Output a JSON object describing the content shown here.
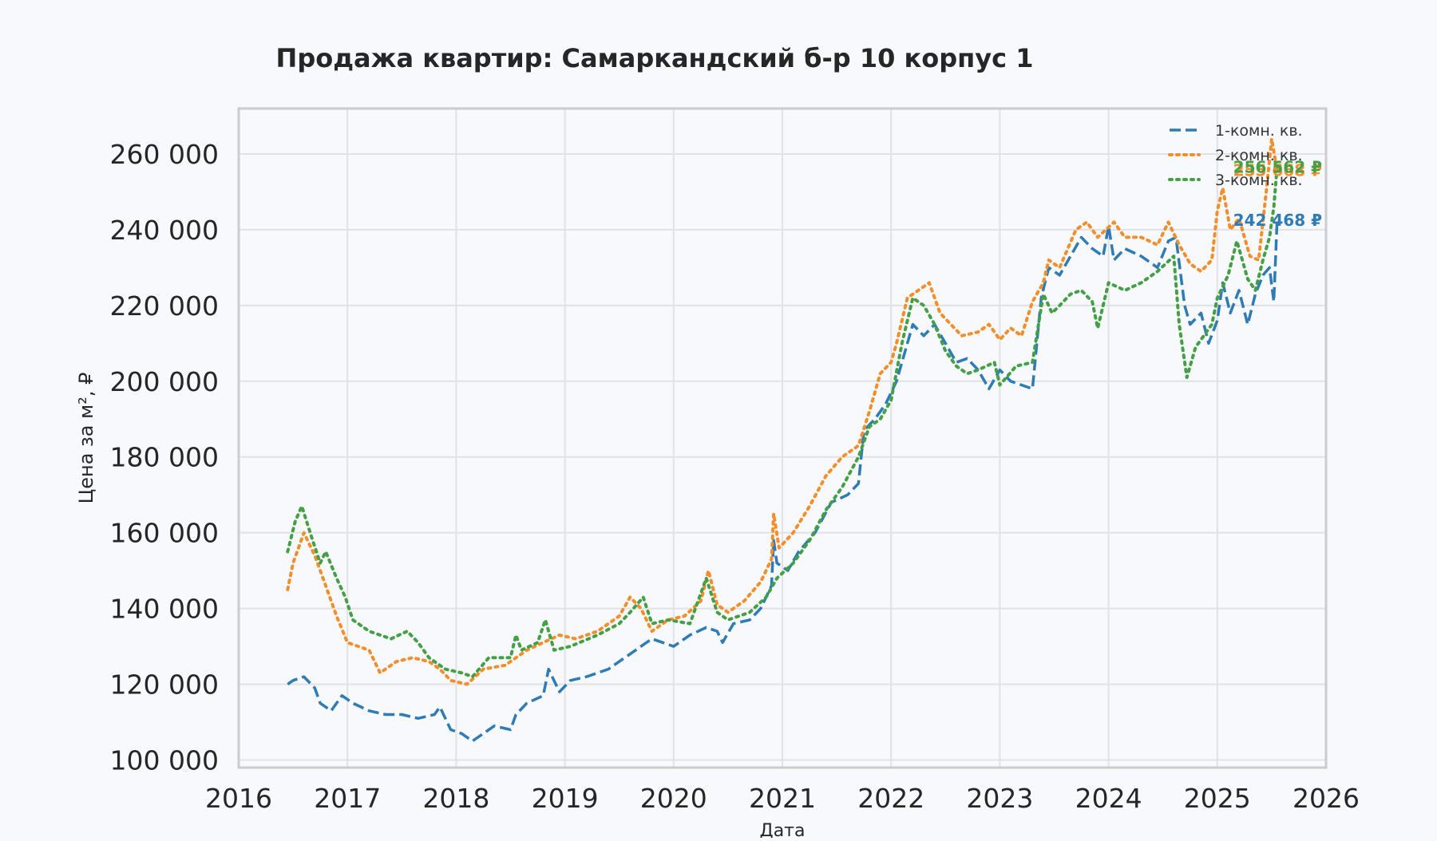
{
  "chart_data": {
    "type": "line",
    "title": "Продажа квартир: Самаркандский б-р 10 корпус 1",
    "xlabel": "Дата",
    "ylabel": "Цена за м², ₽",
    "xlim": [
      2016,
      2026
    ],
    "ylim": [
      98000,
      272000
    ],
    "x_ticks": [
      "2016",
      "2017",
      "2018",
      "2019",
      "2020",
      "2021",
      "2022",
      "2023",
      "2024",
      "2025",
      "2026"
    ],
    "y_ticks": [
      "100 000",
      "120 000",
      "140 000",
      "160 000",
      "180 000",
      "200 000",
      "220 000",
      "240 000",
      "260 000"
    ],
    "grid": true,
    "legend_position": "top-right",
    "series": [
      {
        "name": "1-комн. кв.",
        "color": "#2f7bb6",
        "style": "dashed",
        "end_label": "242 468 ₽",
        "points": [
          [
            2016.45,
            120000
          ],
          [
            2016.5,
            121000
          ],
          [
            2016.6,
            122000
          ],
          [
            2016.7,
            119000
          ],
          [
            2016.75,
            115000
          ],
          [
            2016.85,
            113000
          ],
          [
            2016.95,
            117000
          ],
          [
            2017.05,
            115000
          ],
          [
            2017.2,
            113000
          ],
          [
            2017.35,
            112000
          ],
          [
            2017.5,
            112000
          ],
          [
            2017.65,
            111000
          ],
          [
            2017.8,
            112000
          ],
          [
            2017.85,
            114000
          ],
          [
            2017.95,
            108000
          ],
          [
            2018.05,
            107000
          ],
          [
            2018.15,
            105000
          ],
          [
            2018.25,
            107000
          ],
          [
            2018.35,
            109000
          ],
          [
            2018.5,
            108000
          ],
          [
            2018.55,
            112000
          ],
          [
            2018.65,
            115000
          ],
          [
            2018.8,
            117000
          ],
          [
            2018.85,
            124000
          ],
          [
            2018.95,
            118000
          ],
          [
            2019.05,
            121000
          ],
          [
            2019.2,
            122000
          ],
          [
            2019.4,
            124000
          ],
          [
            2019.55,
            127000
          ],
          [
            2019.7,
            130000
          ],
          [
            2019.8,
            132000
          ],
          [
            2019.9,
            131000
          ],
          [
            2020.0,
            130000
          ],
          [
            2020.15,
            133000
          ],
          [
            2020.3,
            135000
          ],
          [
            2020.4,
            134000
          ],
          [
            2020.45,
            131000
          ],
          [
            2020.55,
            136000
          ],
          [
            2020.7,
            137000
          ],
          [
            2020.8,
            140000
          ],
          [
            2020.9,
            146000
          ],
          [
            2020.92,
            158000
          ],
          [
            2020.95,
            152000
          ],
          [
            2021.05,
            150000
          ],
          [
            2021.15,
            155000
          ],
          [
            2021.3,
            160000
          ],
          [
            2021.45,
            168000
          ],
          [
            2021.6,
            170000
          ],
          [
            2021.7,
            173000
          ],
          [
            2021.75,
            187000
          ],
          [
            2021.85,
            190000
          ],
          [
            2021.95,
            194000
          ],
          [
            2022.05,
            200000
          ],
          [
            2022.15,
            210000
          ],
          [
            2022.2,
            215000
          ],
          [
            2022.3,
            212000
          ],
          [
            2022.4,
            215000
          ],
          [
            2022.5,
            210000
          ],
          [
            2022.6,
            205000
          ],
          [
            2022.7,
            206000
          ],
          [
            2022.8,
            203000
          ],
          [
            2022.9,
            198000
          ],
          [
            2023.0,
            203000
          ],
          [
            2023.1,
            200000
          ],
          [
            2023.2,
            199000
          ],
          [
            2023.3,
            198000
          ],
          [
            2023.38,
            222000
          ],
          [
            2023.45,
            230000
          ],
          [
            2023.55,
            228000
          ],
          [
            2023.65,
            233000
          ],
          [
            2023.75,
            238000
          ],
          [
            2023.85,
            235000
          ],
          [
            2023.95,
            233000
          ],
          [
            2024.0,
            241000
          ],
          [
            2024.05,
            232000
          ],
          [
            2024.15,
            235000
          ],
          [
            2024.3,
            233000
          ],
          [
            2024.45,
            230000
          ],
          [
            2024.55,
            237000
          ],
          [
            2024.62,
            238000
          ],
          [
            2024.7,
            220000
          ],
          [
            2024.75,
            215000
          ],
          [
            2024.85,
            218000
          ],
          [
            2024.92,
            210000
          ],
          [
            2025.0,
            216000
          ],
          [
            2025.05,
            226000
          ],
          [
            2025.12,
            218000
          ],
          [
            2025.2,
            224000
          ],
          [
            2025.28,
            215000
          ],
          [
            2025.35,
            223000
          ],
          [
            2025.42,
            228000
          ],
          [
            2025.48,
            230000
          ],
          [
            2025.52,
            221000
          ],
          [
            2025.55,
            242468
          ]
        ]
      },
      {
        "name": "2-комн. кв.",
        "color": "#f28e2b",
        "style": "dotted",
        "end_label": "255 668 ₽",
        "points": [
          [
            2016.45,
            145000
          ],
          [
            2016.5,
            152000
          ],
          [
            2016.6,
            160000
          ],
          [
            2016.7,
            154000
          ],
          [
            2016.8,
            146000
          ],
          [
            2016.9,
            138000
          ],
          [
            2017.0,
            131000
          ],
          [
            2017.1,
            130000
          ],
          [
            2017.2,
            129000
          ],
          [
            2017.3,
            123000
          ],
          [
            2017.45,
            126000
          ],
          [
            2017.6,
            127000
          ],
          [
            2017.75,
            126000
          ],
          [
            2017.85,
            124000
          ],
          [
            2017.95,
            121000
          ],
          [
            2018.1,
            120000
          ],
          [
            2018.25,
            124000
          ],
          [
            2018.45,
            125000
          ],
          [
            2018.65,
            129000
          ],
          [
            2018.8,
            131000
          ],
          [
            2018.95,
            133000
          ],
          [
            2019.1,
            132000
          ],
          [
            2019.3,
            134000
          ],
          [
            2019.5,
            138000
          ],
          [
            2019.6,
            143000
          ],
          [
            2019.7,
            140000
          ],
          [
            2019.8,
            134000
          ],
          [
            2019.95,
            137000
          ],
          [
            2020.1,
            138000
          ],
          [
            2020.25,
            142000
          ],
          [
            2020.32,
            150000
          ],
          [
            2020.4,
            141000
          ],
          [
            2020.5,
            139000
          ],
          [
            2020.65,
            142000
          ],
          [
            2020.8,
            147000
          ],
          [
            2020.9,
            153000
          ],
          [
            2020.92,
            165000
          ],
          [
            2020.97,
            156000
          ],
          [
            2021.1,
            160000
          ],
          [
            2021.25,
            167000
          ],
          [
            2021.4,
            175000
          ],
          [
            2021.55,
            180000
          ],
          [
            2021.7,
            183000
          ],
          [
            2021.8,
            192000
          ],
          [
            2021.9,
            202000
          ],
          [
            2022.0,
            205000
          ],
          [
            2022.05,
            210000
          ],
          [
            2022.15,
            222000
          ],
          [
            2022.25,
            224000
          ],
          [
            2022.35,
            226000
          ],
          [
            2022.45,
            218000
          ],
          [
            2022.55,
            215000
          ],
          [
            2022.65,
            212000
          ],
          [
            2022.8,
            213000
          ],
          [
            2022.9,
            215000
          ],
          [
            2023.0,
            211000
          ],
          [
            2023.1,
            214000
          ],
          [
            2023.2,
            212000
          ],
          [
            2023.3,
            221000
          ],
          [
            2023.4,
            226000
          ],
          [
            2023.45,
            232000
          ],
          [
            2023.55,
            230000
          ],
          [
            2023.7,
            240000
          ],
          [
            2023.8,
            242000
          ],
          [
            2023.9,
            238000
          ],
          [
            2024.05,
            242000
          ],
          [
            2024.15,
            238000
          ],
          [
            2024.3,
            238000
          ],
          [
            2024.45,
            236000
          ],
          [
            2024.55,
            242000
          ],
          [
            2024.65,
            236000
          ],
          [
            2024.75,
            231000
          ],
          [
            2024.85,
            229000
          ],
          [
            2024.95,
            232000
          ],
          [
            2025.0,
            245000
          ],
          [
            2025.05,
            251000
          ],
          [
            2025.12,
            240000
          ],
          [
            2025.2,
            243000
          ],
          [
            2025.3,
            233000
          ],
          [
            2025.38,
            232000
          ],
          [
            2025.45,
            250000
          ],
          [
            2025.5,
            264000
          ],
          [
            2025.55,
            255668
          ]
        ]
      },
      {
        "name": "3-комн. кв.",
        "color": "#44a045",
        "style": "dotted",
        "end_label": "256 562 ₽",
        "points": [
          [
            2016.45,
            155000
          ],
          [
            2016.52,
            163000
          ],
          [
            2016.58,
            167000
          ],
          [
            2016.68,
            158000
          ],
          [
            2016.75,
            152000
          ],
          [
            2016.8,
            155000
          ],
          [
            2016.9,
            148000
          ],
          [
            2016.98,
            143000
          ],
          [
            2017.05,
            137000
          ],
          [
            2017.2,
            134000
          ],
          [
            2017.4,
            132000
          ],
          [
            2017.55,
            134000
          ],
          [
            2017.65,
            131000
          ],
          [
            2017.75,
            127000
          ],
          [
            2017.9,
            124000
          ],
          [
            2018.05,
            123000
          ],
          [
            2018.15,
            122000
          ],
          [
            2018.3,
            127000
          ],
          [
            2018.5,
            127000
          ],
          [
            2018.55,
            133000
          ],
          [
            2018.6,
            129000
          ],
          [
            2018.75,
            131000
          ],
          [
            2018.82,
            137000
          ],
          [
            2018.9,
            129000
          ],
          [
            2019.05,
            130000
          ],
          [
            2019.3,
            133000
          ],
          [
            2019.5,
            136000
          ],
          [
            2019.6,
            139000
          ],
          [
            2019.72,
            143000
          ],
          [
            2019.8,
            136000
          ],
          [
            2019.95,
            137000
          ],
          [
            2020.15,
            136000
          ],
          [
            2020.3,
            148000
          ],
          [
            2020.4,
            139000
          ],
          [
            2020.5,
            137000
          ],
          [
            2020.7,
            139000
          ],
          [
            2020.85,
            143000
          ],
          [
            2020.95,
            148000
          ],
          [
            2021.1,
            152000
          ],
          [
            2021.25,
            158000
          ],
          [
            2021.4,
            166000
          ],
          [
            2021.55,
            172000
          ],
          [
            2021.7,
            180000
          ],
          [
            2021.8,
            188000
          ],
          [
            2021.9,
            190000
          ],
          [
            2022.0,
            195000
          ],
          [
            2022.1,
            210000
          ],
          [
            2022.2,
            222000
          ],
          [
            2022.3,
            220000
          ],
          [
            2022.4,
            215000
          ],
          [
            2022.5,
            208000
          ],
          [
            2022.6,
            204000
          ],
          [
            2022.7,
            202000
          ],
          [
            2022.8,
            203000
          ],
          [
            2022.95,
            205000
          ],
          [
            2023.0,
            199000
          ],
          [
            2023.15,
            204000
          ],
          [
            2023.3,
            205000
          ],
          [
            2023.4,
            223000
          ],
          [
            2023.48,
            218000
          ],
          [
            2023.55,
            220000
          ],
          [
            2023.65,
            223000
          ],
          [
            2023.75,
            224000
          ],
          [
            2023.85,
            221000
          ],
          [
            2023.9,
            214000
          ],
          [
            2024.0,
            226000
          ],
          [
            2024.15,
            224000
          ],
          [
            2024.3,
            226000
          ],
          [
            2024.45,
            229000
          ],
          [
            2024.6,
            233000
          ],
          [
            2024.65,
            215000
          ],
          [
            2024.72,
            201000
          ],
          [
            2024.8,
            209000
          ],
          [
            2024.95,
            215000
          ],
          [
            2025.0,
            222000
          ],
          [
            2025.1,
            228000
          ],
          [
            2025.18,
            237000
          ],
          [
            2025.28,
            227000
          ],
          [
            2025.35,
            224000
          ],
          [
            2025.42,
            232000
          ],
          [
            2025.48,
            238000
          ],
          [
            2025.52,
            246000
          ],
          [
            2025.55,
            256562
          ]
        ]
      }
    ]
  }
}
